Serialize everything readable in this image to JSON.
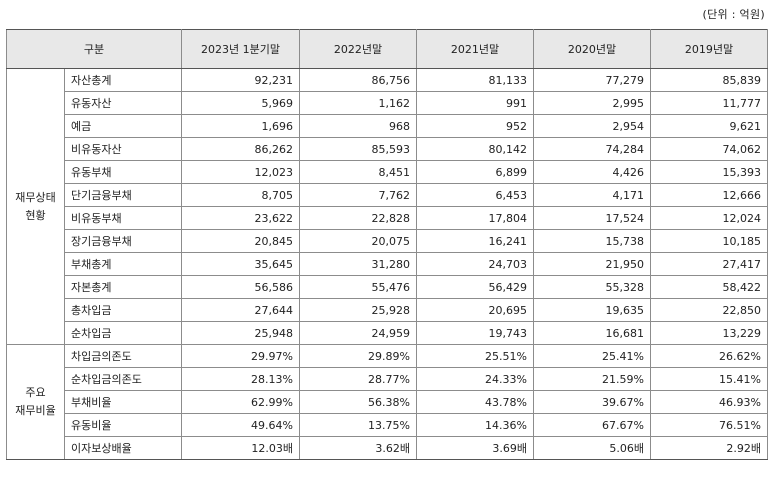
{
  "unit_label": "(단위 : 억원)",
  "headers": [
    "구분",
    "2023년 1분기말",
    "2022년말",
    "2021년말",
    "2020년말",
    "2019년말"
  ],
  "groups": [
    {
      "label_lines": [
        "재무상태",
        "현황"
      ],
      "rows": [
        {
          "item": "자산총계",
          "values": [
            "92,231",
            "86,756",
            "81,133",
            "77,279",
            "85,839"
          ]
        },
        {
          "item": "유동자산",
          "values": [
            "5,969",
            "1,162",
            "991",
            "2,995",
            "11,777"
          ]
        },
        {
          "item": "예금",
          "values": [
            "1,696",
            "968",
            "952",
            "2,954",
            "9,621"
          ]
        },
        {
          "item": "비유동자산",
          "values": [
            "86,262",
            "85,593",
            "80,142",
            "74,284",
            "74,062"
          ]
        },
        {
          "item": "유동부채",
          "values": [
            "12,023",
            "8,451",
            "6,899",
            "4,426",
            "15,393"
          ]
        },
        {
          "item": "단기금융부채",
          "values": [
            "8,705",
            "7,762",
            "6,453",
            "4,171",
            "12,666"
          ]
        },
        {
          "item": "비유동부채",
          "values": [
            "23,622",
            "22,828",
            "17,804",
            "17,524",
            "12,024"
          ]
        },
        {
          "item": "장기금융부채",
          "values": [
            "20,845",
            "20,075",
            "16,241",
            "15,738",
            "10,185"
          ]
        },
        {
          "item": "부채총계",
          "values": [
            "35,645",
            "31,280",
            "24,703",
            "21,950",
            "27,417"
          ]
        },
        {
          "item": "자본총계",
          "values": [
            "56,586",
            "55,476",
            "56,429",
            "55,328",
            "58,422"
          ]
        },
        {
          "item": "총차입금",
          "values": [
            "27,644",
            "25,928",
            "20,695",
            "19,635",
            "22,850"
          ]
        },
        {
          "item": "순차입금",
          "values": [
            "25,948",
            "24,959",
            "19,743",
            "16,681",
            "13,229"
          ]
        }
      ]
    },
    {
      "label_lines": [
        "주요",
        "재무비율"
      ],
      "rows": [
        {
          "item": "차입금의존도",
          "values": [
            "29.97%",
            "29.89%",
            "25.51%",
            "25.41%",
            "26.62%"
          ]
        },
        {
          "item": "순차입금의존도",
          "values": [
            "28.13%",
            "28.77%",
            "24.33%",
            "21.59%",
            "15.41%"
          ]
        },
        {
          "item": "부채비율",
          "values": [
            "62.99%",
            "56.38%",
            "43.78%",
            "39.67%",
            "46.93%"
          ]
        },
        {
          "item": "유동비율",
          "values": [
            "49.64%",
            "13.75%",
            "14.36%",
            "67.67%",
            "76.51%"
          ]
        },
        {
          "item": "이자보상배율",
          "values": [
            "12.03배",
            "3.62배",
            "3.69배",
            "5.06배",
            "2.92배"
          ]
        }
      ]
    }
  ]
}
